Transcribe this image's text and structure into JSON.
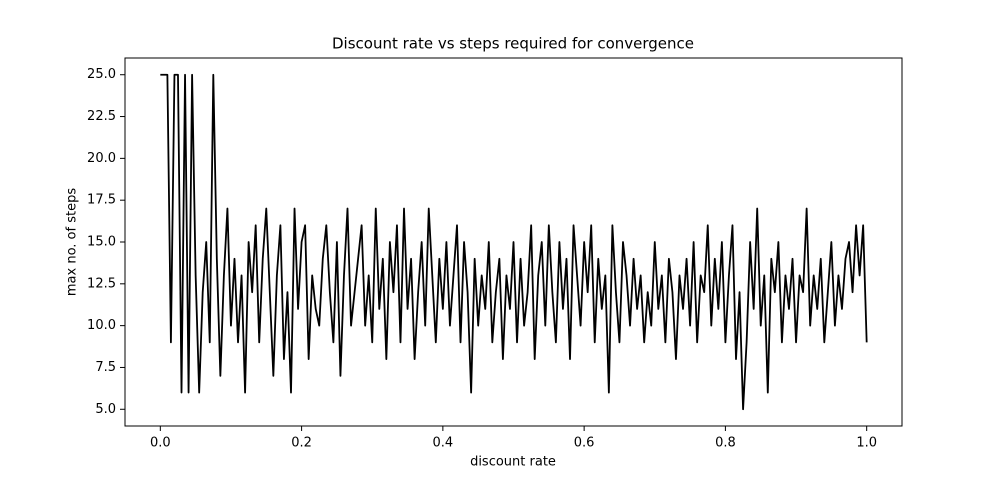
{
  "chart_data": {
    "type": "line",
    "title": "Discount rate vs  steps required for convergence",
    "x_label": "discount rate",
    "y_label": "max no. of steps",
    "xlim": [
      -0.05,
      1.05
    ],
    "ylim": [
      4,
      26
    ],
    "xticks": [
      {
        "value": 0,
        "label": "0.0"
      },
      0.2,
      0.4,
      0.6,
      0.8,
      {
        "value": 1,
        "label": "1.0"
      }
    ],
    "yticks": [
      {
        "value": 5,
        "label": "5.0"
      },
      7.5,
      {
        "value": 10,
        "label": "10.0"
      },
      12.5,
      {
        "value": 15,
        "label": "15.0"
      },
      17.5,
      {
        "value": 20,
        "label": "20.0"
      },
      22.5,
      {
        "value": 25,
        "label": "25.0"
      }
    ],
    "grid": false,
    "series": [
      {
        "color": "#000000",
        "x": [
          0,
          0.005,
          0.01,
          0.015,
          0.02,
          0.025,
          0.03,
          0.035,
          0.04,
          0.045,
          0.05,
          0.055,
          0.06,
          0.065,
          0.07,
          0.075,
          0.08,
          0.085,
          0.09,
          0.095,
          0.1,
          0.105,
          0.11,
          0.115,
          0.12,
          0.125,
          0.13,
          0.135,
          0.14,
          0.145,
          0.15,
          0.155,
          0.16,
          0.165,
          0.17,
          0.175,
          0.18,
          0.185,
          0.19,
          0.195,
          0.2,
          0.205,
          0.21,
          0.215,
          0.22,
          0.225,
          0.23,
          0.235,
          0.24,
          0.245,
          0.25,
          0.255,
          0.26,
          0.265,
          0.27,
          0.275,
          0.28,
          0.285,
          0.29,
          0.295,
          0.3,
          0.305,
          0.31,
          0.315,
          0.32,
          0.325,
          0.33,
          0.335,
          0.34,
          0.345,
          0.35,
          0.355,
          0.36,
          0.365,
          0.37,
          0.375,
          0.38,
          0.385,
          0.39,
          0.395,
          0.4,
          0.405,
          0.41,
          0.415,
          0.42,
          0.425,
          0.43,
          0.435,
          0.44,
          0.445,
          0.45,
          0.455,
          0.46,
          0.465,
          0.47,
          0.475,
          0.48,
          0.485,
          0.49,
          0.495,
          0.5,
          0.505,
          0.51,
          0.515,
          0.52,
          0.525,
          0.53,
          0.535,
          0.54,
          0.545,
          0.55,
          0.555,
          0.56,
          0.565,
          0.57,
          0.575,
          0.58,
          0.585,
          0.59,
          0.595,
          0.6,
          0.605,
          0.61,
          0.615,
          0.62,
          0.625,
          0.63,
          0.635,
          0.64,
          0.645,
          0.65,
          0.655,
          0.66,
          0.665,
          0.67,
          0.675,
          0.68,
          0.685,
          0.69,
          0.695,
          0.7,
          0.705,
          0.71,
          0.715,
          0.72,
          0.725,
          0.73,
          0.735,
          0.74,
          0.745,
          0.75,
          0.755,
          0.76,
          0.765,
          0.77,
          0.775,
          0.78,
          0.785,
          0.79,
          0.795,
          0.8,
          0.805,
          0.81,
          0.815,
          0.82,
          0.825,
          0.83,
          0.835,
          0.84,
          0.845,
          0.85,
          0.855,
          0.86,
          0.865,
          0.87,
          0.875,
          0.88,
          0.885,
          0.89,
          0.895,
          0.9,
          0.905,
          0.91,
          0.915,
          0.92,
          0.925,
          0.93,
          0.935,
          0.94,
          0.945,
          0.95,
          0.955,
          0.96,
          0.965,
          0.97,
          0.975,
          0.98,
          0.985,
          0.99,
          0.995,
          1
        ],
        "values": [
          25,
          25,
          25,
          9,
          25,
          25,
          6,
          25,
          6,
          25,
          13,
          6,
          12,
          15,
          9,
          25,
          14,
          7,
          13,
          17,
          10,
          14,
          9,
          13,
          6,
          15,
          12,
          16,
          9,
          14,
          17,
          12,
          7,
          13,
          16,
          8,
          12,
          6,
          17,
          11,
          15,
          16,
          8,
          13,
          11,
          10,
          14,
          16,
          12,
          9,
          15,
          7,
          13,
          17,
          10,
          12,
          14,
          16,
          10,
          13,
          9,
          17,
          11,
          14,
          8,
          15,
          12,
          16,
          9,
          17,
          11,
          14,
          8,
          12,
          15,
          10,
          17,
          13,
          9,
          14,
          11,
          15,
          10,
          13,
          16,
          9,
          15,
          12,
          6,
          14,
          10,
          13,
          11,
          15,
          9,
          12,
          14,
          8,
          13,
          11,
          15,
          9,
          14,
          10,
          12,
          16,
          8,
          13,
          15,
          10,
          16,
          12,
          9,
          15,
          11,
          14,
          8,
          16,
          13,
          10,
          15,
          12,
          16,
          9,
          14,
          11,
          13,
          6,
          16,
          12,
          9,
          15,
          13,
          10,
          14,
          11,
          13,
          9,
          12,
          10,
          15,
          11,
          13,
          9,
          14,
          12,
          8,
          13,
          11,
          14,
          10,
          15,
          9,
          13,
          12,
          16,
          10,
          14,
          11,
          15,
          9,
          13,
          16,
          8,
          12,
          5,
          9,
          15,
          11,
          17,
          10,
          13,
          6,
          14,
          12,
          15,
          9,
          13,
          11,
          14,
          9,
          13,
          12,
          17,
          10,
          13,
          11,
          14,
          9,
          12,
          15,
          10,
          13,
          11,
          14,
          15,
          12,
          16,
          13,
          16,
          9
        ]
      }
    ]
  }
}
